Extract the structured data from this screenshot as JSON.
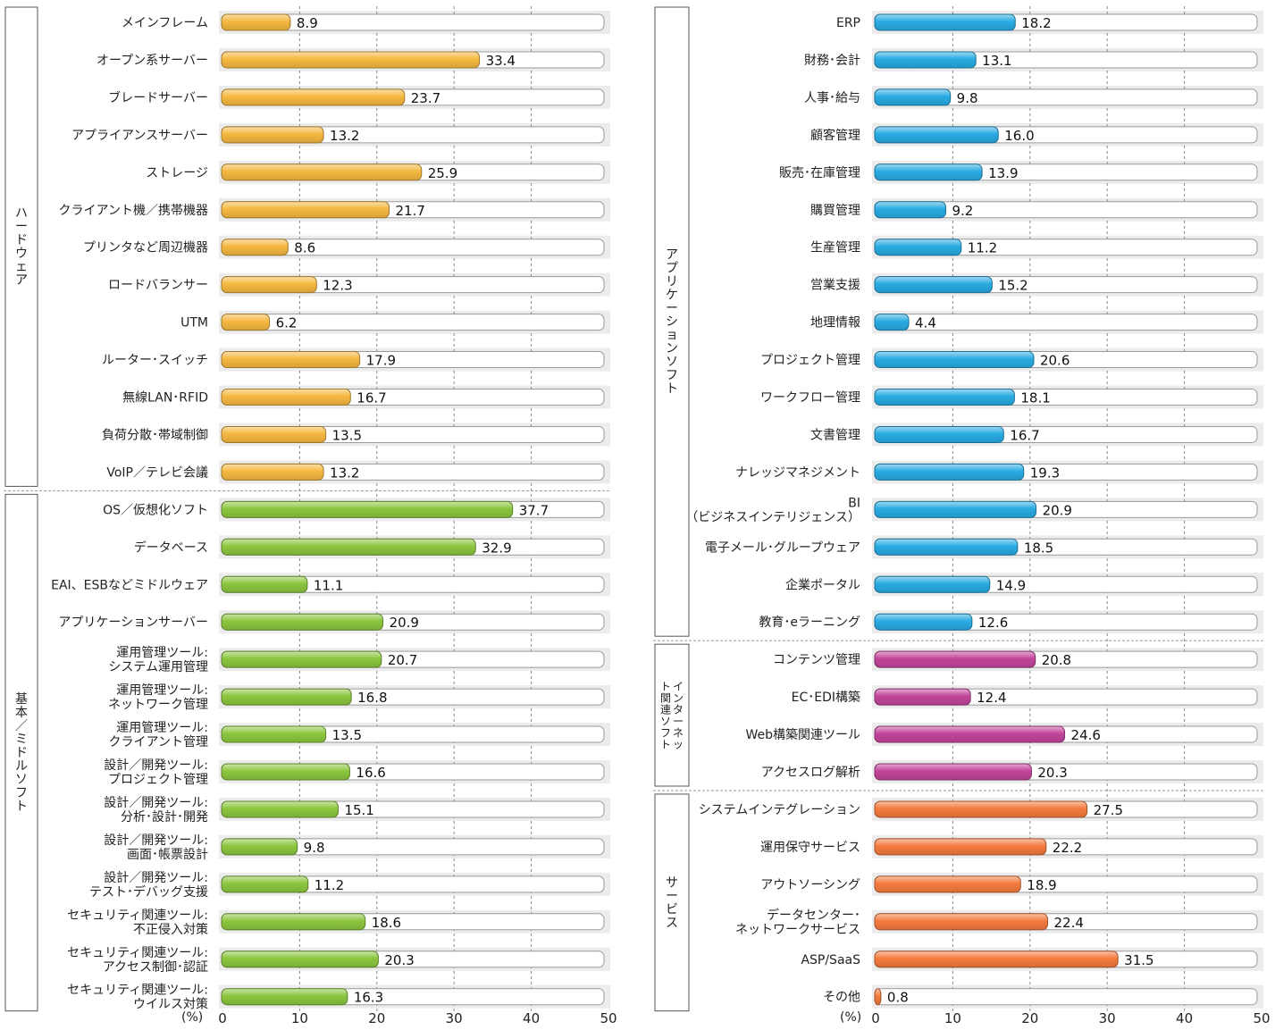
{
  "chart_data": [
    {
      "type": "bar",
      "orientation": "horizontal",
      "unit_label": "(%)",
      "xlim": [
        0,
        50
      ],
      "xticks": [
        "0",
        "10",
        "20",
        "30",
        "40",
        "50"
      ],
      "grid": true,
      "groups": [
        {
          "label": "ハードウェア",
          "color": "#f5b841",
          "items": [
            {
              "label": [
                "メインフレーム"
              ],
              "value": 8.9
            },
            {
              "label": [
                "オープン系サーバー"
              ],
              "value": 33.4
            },
            {
              "label": [
                "ブレードサーバー"
              ],
              "value": 23.7
            },
            {
              "label": [
                "アプライアンスサーバー"
              ],
              "value": 13.2
            },
            {
              "label": [
                "ストレージ"
              ],
              "value": 25.9
            },
            {
              "label": [
                "クライアント機／携帯機器"
              ],
              "value": 21.7
            },
            {
              "label": [
                "プリンタなど周辺機器"
              ],
              "value": 8.6
            },
            {
              "label": [
                "ロードバランサー"
              ],
              "value": 12.3
            },
            {
              "label": [
                "UTM"
              ],
              "value": 6.2
            },
            {
              "label": [
                "ルーター･スイッチ"
              ],
              "value": 17.9
            },
            {
              "label": [
                "無線LAN･RFID"
              ],
              "value": 16.7
            },
            {
              "label": [
                "負荷分散･帯域制御"
              ],
              "value": 13.5
            },
            {
              "label": [
                "VoIP／テレビ会議"
              ],
              "value": 13.2
            }
          ]
        },
        {
          "label": "基本／ミドルソフト",
          "color": "#8cc63f",
          "items": [
            {
              "label": [
                "OS／仮想化ソフト"
              ],
              "value": 37.7
            },
            {
              "label": [
                "データベース"
              ],
              "value": 32.9
            },
            {
              "label": [
                "EAI、ESBなどミドルウェア"
              ],
              "value": 11.1
            },
            {
              "label": [
                "アプリケーションサーバー"
              ],
              "value": 20.9
            },
            {
              "label": [
                "運用管理ツール:",
                "システム運用管理"
              ],
              "value": 20.7
            },
            {
              "label": [
                "運用管理ツール:",
                "ネットワーク管理"
              ],
              "value": 16.8
            },
            {
              "label": [
                "運用管理ツール:",
                "クライアント管理"
              ],
              "value": 13.5
            },
            {
              "label": [
                "設計／開発ツール:",
                "プロジェクト管理"
              ],
              "value": 16.6
            },
            {
              "label": [
                "設計／開発ツール:",
                "分析･設計･開発"
              ],
              "value": 15.1
            },
            {
              "label": [
                "設計／開発ツール:",
                "画面･帳票設計"
              ],
              "value": 9.8
            },
            {
              "label": [
                "設計／開発ツール:",
                "テスト･デバッグ支援"
              ],
              "value": 11.2
            },
            {
              "label": [
                "セキュリティ関連ツール:",
                "不正侵入対策"
              ],
              "value": 18.6
            },
            {
              "label": [
                "セキュリティ関連ツール:",
                "アクセス制御･認証"
              ],
              "value": 20.3
            },
            {
              "label": [
                "セキュリティ関連ツール:",
                "ウイルス対策"
              ],
              "value": 16.3
            }
          ]
        }
      ]
    },
    {
      "type": "bar",
      "orientation": "horizontal",
      "unit_label": "(%)",
      "xlim": [
        0,
        50
      ],
      "xticks": [
        "0",
        "10",
        "20",
        "30",
        "40",
        "50"
      ],
      "grid": true,
      "groups": [
        {
          "label": "アプリケーションソフト",
          "color": "#29abe2",
          "items": [
            {
              "label": [
                "ERP"
              ],
              "value": 18.2
            },
            {
              "label": [
                "財務･会計"
              ],
              "value": 13.1
            },
            {
              "label": [
                "人事･給与"
              ],
              "value": 9.8
            },
            {
              "label": [
                "顧客管理"
              ],
              "value": 16.0
            },
            {
              "label": [
                "販売･在庫管理"
              ],
              "value": 13.9
            },
            {
              "label": [
                "購買管理"
              ],
              "value": 9.2
            },
            {
              "label": [
                "生産管理"
              ],
              "value": 11.2
            },
            {
              "label": [
                "営業支援"
              ],
              "value": 15.2
            },
            {
              "label": [
                "地理情報"
              ],
              "value": 4.4
            },
            {
              "label": [
                "プロジェクト管理"
              ],
              "value": 20.6
            },
            {
              "label": [
                "ワークフロー管理"
              ],
              "value": 18.1
            },
            {
              "label": [
                "文書管理"
              ],
              "value": 16.7
            },
            {
              "label": [
                "ナレッジマネジメント"
              ],
              "value": 19.3
            },
            {
              "label": [
                "BI",
                "（ビジネスインテリジェンス）"
              ],
              "value": 20.9
            },
            {
              "label": [
                "電子メール･グループウェア"
              ],
              "value": 18.5
            },
            {
              "label": [
                "企業ポータル"
              ],
              "value": 14.9
            },
            {
              "label": [
                "教育･eラーニング"
              ],
              "value": 12.6
            }
          ]
        },
        {
          "label": "インターネット関連ソフト",
          "color": "#c2459b",
          "items": [
            {
              "label": [
                "コンテンツ管理"
              ],
              "value": 20.8
            },
            {
              "label": [
                "EC･EDI構築"
              ],
              "value": 12.4
            },
            {
              "label": [
                "Web構築関連ツール"
              ],
              "value": 24.6
            },
            {
              "label": [
                "アクセスログ解析"
              ],
              "value": 20.3
            }
          ]
        },
        {
          "label": "サービス",
          "color": "#f47b3e",
          "items": [
            {
              "label": [
                "システムインテグレーション"
              ],
              "value": 27.5
            },
            {
              "label": [
                "運用保守サービス"
              ],
              "value": 22.2
            },
            {
              "label": [
                "アウトソーシング"
              ],
              "value": 18.9
            },
            {
              "label": [
                "データセンター･",
                "ネットワークサービス"
              ],
              "value": 22.4
            },
            {
              "label": [
                "ASP/SaaS"
              ],
              "value": 31.5
            },
            {
              "label": [
                "その他"
              ],
              "value": 0.8
            }
          ]
        }
      ]
    }
  ]
}
